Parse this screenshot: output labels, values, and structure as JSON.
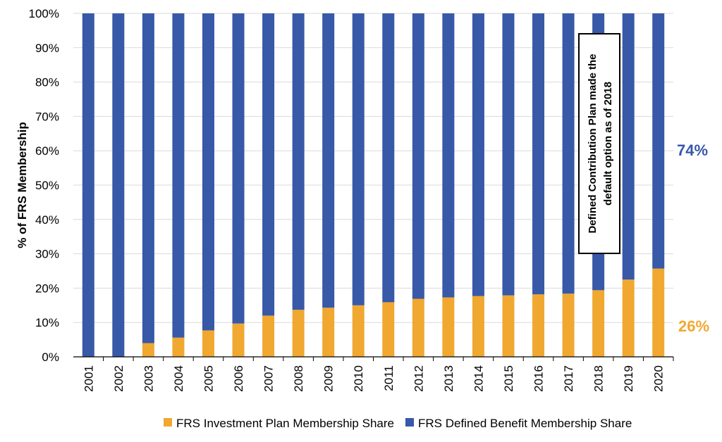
{
  "chart_data": {
    "type": "bar",
    "stacked": true,
    "percent_stacked": true,
    "title": "",
    "xlabel": "",
    "ylabel": "% of FRS Membership",
    "ylim": [
      0,
      100
    ],
    "y_ticks": [
      "0%",
      "10%",
      "20%",
      "30%",
      "40%",
      "50%",
      "60%",
      "70%",
      "80%",
      "90%",
      "100%"
    ],
    "grid": true,
    "legend_position": "bottom",
    "categories": [
      "2001",
      "2002",
      "2003",
      "2004",
      "2005",
      "2006",
      "2007",
      "2008",
      "2009",
      "2010",
      "2011",
      "2012",
      "2013",
      "2014",
      "2015",
      "2016",
      "2017",
      "2018",
      "2019",
      "2020"
    ],
    "series": [
      {
        "name": "FRS Investment Plan Membership Share",
        "color": "#F0A830",
        "values": [
          0,
          0,
          4.0,
          5.6,
          7.7,
          9.7,
          12.0,
          13.7,
          14.3,
          15.0,
          15.9,
          16.9,
          17.3,
          17.7,
          17.9,
          18.2,
          18.4,
          19.4,
          22.5,
          25.7
        ]
      },
      {
        "name": "FRS Defined Benefit Membership Share",
        "color": "#3858A8",
        "values": [
          100,
          100,
          96.0,
          94.4,
          92.3,
          90.3,
          88.0,
          86.3,
          85.7,
          85.0,
          84.1,
          83.1,
          82.7,
          82.3,
          82.1,
          81.8,
          81.6,
          80.6,
          77.5,
          74.3
        ]
      }
    ],
    "end_labels": [
      {
        "text": "74%",
        "color": "#3858A8"
      },
      {
        "text": "26%",
        "color": "#F0A830"
      }
    ],
    "annotation": {
      "lines": [
        "Defined Contribution Plan made the",
        "default option as of 2018"
      ]
    }
  }
}
